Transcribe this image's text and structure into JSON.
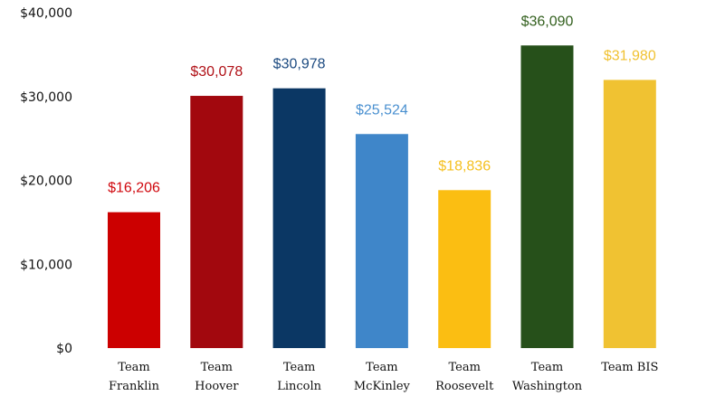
{
  "chart_data": {
    "type": "bar",
    "title": "",
    "xlabel": "",
    "ylabel": "",
    "ylim": [
      0,
      40000
    ],
    "grid": false,
    "legend": "none",
    "y_ticks": [
      {
        "value": 0,
        "label": "$0"
      },
      {
        "value": 10000,
        "label": "$10,000"
      },
      {
        "value": 20000,
        "label": "$20,000"
      },
      {
        "value": 30000,
        "label": "$30,000"
      },
      {
        "value": 40000,
        "label": "$40,000"
      }
    ],
    "categories": [
      {
        "line1": "Team",
        "line2": "Franklin"
      },
      {
        "line1": "Team",
        "line2": "Hoover"
      },
      {
        "line1": "Team",
        "line2": "Lincoln"
      },
      {
        "line1": "Team",
        "line2": "McKinley"
      },
      {
        "line1": "Team",
        "line2": "Roosevelt"
      },
      {
        "line1": "Team",
        "line2": "Washington"
      },
      {
        "line1": "Team BIS",
        "line2": ""
      }
    ],
    "values": [
      16206,
      30078,
      30978,
      25524,
      18836,
      36090,
      31980
    ],
    "value_labels": [
      "$16,206",
      "$30,078",
      "$30,978",
      "$25,524",
      "$18,836",
      "$36,090",
      "$31,980"
    ],
    "bar_colors": [
      "#cc0000",
      "#a2080e",
      "#0b3764",
      "#3f86c9",
      "#fbbe12",
      "#26501a",
      "#f0c232"
    ],
    "label_colors": [
      "#d0080e",
      "#b01016",
      "#1c4a80",
      "#4a90d0",
      "#f5c020",
      "#33601e",
      "#f0c232"
    ]
  }
}
